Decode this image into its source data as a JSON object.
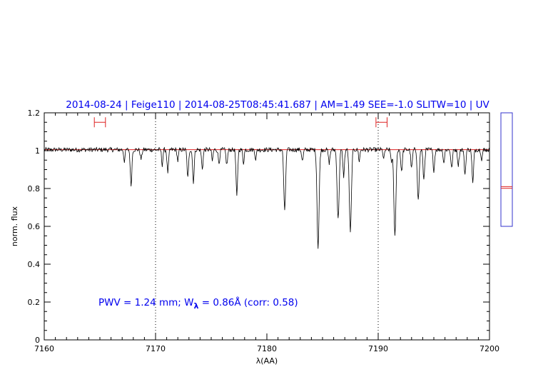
{
  "chart_data": {
    "type": "line",
    "title": "2014-08-24 | Feige110 | 2014-08-25T08:45:41.687 | AM=1.49  SEE=-1.0  SLITW=10 | UV",
    "xlabel": "λ(AA)",
    "ylabel": "norm. flux",
    "xlim": [
      7160,
      7200
    ],
    "ylim": [
      0,
      1.2
    ],
    "x_ticks": [
      7160,
      7170,
      7180,
      7190,
      7200
    ],
    "y_ticks": [
      0,
      0.2,
      0.4,
      0.6,
      0.8,
      1,
      1.2
    ],
    "x_tick_labels": [
      "7160",
      "7170",
      "7180",
      "7190",
      "7200"
    ],
    "y_tick_labels": [
      "0",
      "0.2",
      "0.4",
      "0.6",
      "0.8",
      "1",
      "1.2"
    ],
    "grid": false,
    "continuum_level": 1.005,
    "vertical_markers": [
      7170,
      7190
    ],
    "range_markers": [
      {
        "x": [
          7164.5,
          7165.5
        ],
        "y": 1.15
      },
      {
        "x": [
          7189.8,
          7190.8
        ],
        "y": 1.15
      }
    ],
    "spectrum": {
      "baseline": 1.005,
      "noise_amplitude": 0.012,
      "x_step": 0.05,
      "absorption_lines": [
        {
          "x": 7167.2,
          "depth": 0.06,
          "sigma": 0.06
        },
        {
          "x": 7167.8,
          "depth": 0.19,
          "sigma": 0.07
        },
        {
          "x": 7168.7,
          "depth": 0.05,
          "sigma": 0.07
        },
        {
          "x": 7170.6,
          "depth": 0.08,
          "sigma": 0.06
        },
        {
          "x": 7171.1,
          "depth": 0.12,
          "sigma": 0.07
        },
        {
          "x": 7172.0,
          "depth": 0.06,
          "sigma": 0.06
        },
        {
          "x": 7172.9,
          "depth": 0.15,
          "sigma": 0.07
        },
        {
          "x": 7173.4,
          "depth": 0.17,
          "sigma": 0.07
        },
        {
          "x": 7174.2,
          "depth": 0.1,
          "sigma": 0.07
        },
        {
          "x": 7175.1,
          "depth": 0.06,
          "sigma": 0.06
        },
        {
          "x": 7175.7,
          "depth": 0.07,
          "sigma": 0.07
        },
        {
          "x": 7176.4,
          "depth": 0.08,
          "sigma": 0.07
        },
        {
          "x": 7177.3,
          "depth": 0.25,
          "sigma": 0.07
        },
        {
          "x": 7177.9,
          "depth": 0.07,
          "sigma": 0.06
        },
        {
          "x": 7179.0,
          "depth": 0.05,
          "sigma": 0.06
        },
        {
          "x": 7181.6,
          "depth": 0.33,
          "sigma": 0.08
        },
        {
          "x": 7183.2,
          "depth": 0.06,
          "sigma": 0.07
        },
        {
          "x": 7184.6,
          "depth": 0.52,
          "sigma": 0.09
        },
        {
          "x": 7185.6,
          "depth": 0.07,
          "sigma": 0.07
        },
        {
          "x": 7186.4,
          "depth": 0.37,
          "sigma": 0.09
        },
        {
          "x": 7186.9,
          "depth": 0.14,
          "sigma": 0.07
        },
        {
          "x": 7187.5,
          "depth": 0.44,
          "sigma": 0.09
        },
        {
          "x": 7188.3,
          "depth": 0.06,
          "sigma": 0.06
        },
        {
          "x": 7190.5,
          "depth": 0.05,
          "sigma": 0.06
        },
        {
          "x": 7191.2,
          "depth": 0.06,
          "sigma": 0.07
        },
        {
          "x": 7191.5,
          "depth": 0.46,
          "sigma": 0.09
        },
        {
          "x": 7192.1,
          "depth": 0.12,
          "sigma": 0.07
        },
        {
          "x": 7193.0,
          "depth": 0.1,
          "sigma": 0.07
        },
        {
          "x": 7193.6,
          "depth": 0.27,
          "sigma": 0.08
        },
        {
          "x": 7194.1,
          "depth": 0.16,
          "sigma": 0.07
        },
        {
          "x": 7195.0,
          "depth": 0.11,
          "sigma": 0.07
        },
        {
          "x": 7195.9,
          "depth": 0.07,
          "sigma": 0.06
        },
        {
          "x": 7196.6,
          "depth": 0.1,
          "sigma": 0.07
        },
        {
          "x": 7197.2,
          "depth": 0.08,
          "sigma": 0.07
        },
        {
          "x": 7197.8,
          "depth": 0.13,
          "sigma": 0.07
        },
        {
          "x": 7198.5,
          "depth": 0.18,
          "sigma": 0.07
        },
        {
          "x": 7199.3,
          "depth": 0.05,
          "sigma": 0.06
        }
      ]
    },
    "annotation": {
      "prefix": "PWV  =  1.24  mm;  W",
      "subscript": "λ",
      "suffix": "  =  0.86Å  (corr:  0.58)"
    },
    "side_panel": {
      "ylim": [
        0,
        1
      ],
      "levels": [
        0.35,
        0.335
      ]
    }
  },
  "colors": {
    "spectrum": "#000000",
    "continuum": "#dd2222",
    "markers": "#dd2222",
    "title": "#0000ee",
    "annotation": "#0000ee",
    "side_panel_frame": "#3333cc",
    "side_panel_lines": "#dd2222"
  }
}
